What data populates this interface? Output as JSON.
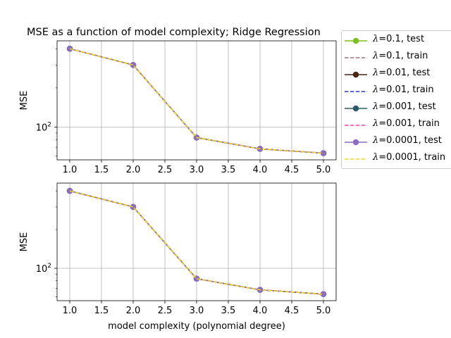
{
  "chart_data": [
    {
      "type": "line",
      "title": "MSE as a function of model complexity; Ridge Regression",
      "xlabel": "",
      "ylabel": "MSE",
      "yscale": "log",
      "grid": true,
      "xlim": [
        0.8,
        5.2
      ],
      "x_ticks": [
        "1.0",
        "1.5",
        "2.0",
        "2.5",
        "3.0",
        "3.5",
        "4.0",
        "4.5",
        "5.0"
      ],
      "y_ticks": [
        "10^2"
      ],
      "x": [
        1,
        2,
        3,
        4,
        5
      ],
      "series": [
        {
          "name": "λ=0.1, test",
          "style": "solid-marker",
          "color": "#7cbf1e",
          "values": [
            400,
            300,
            83,
            68,
            63
          ]
        },
        {
          "name": "λ=0.1, train",
          "style": "dashed",
          "color": "#a0727f",
          "values": [
            400,
            300,
            83,
            68,
            63
          ]
        },
        {
          "name": "λ=0.01, test",
          "style": "solid-marker",
          "color": "#4a2513",
          "values": [
            400,
            300,
            83,
            68,
            63
          ]
        },
        {
          "name": "λ=0.01, train",
          "style": "dashed",
          "color": "#2b3db8",
          "values": [
            400,
            300,
            83,
            68,
            63
          ]
        },
        {
          "name": "λ=0.001, test",
          "style": "solid-marker",
          "color": "#2a5a6a",
          "values": [
            400,
            300,
            83,
            68,
            63
          ]
        },
        {
          "name": "λ=0.001, train",
          "style": "dashed",
          "color": "#ee44b0",
          "values": [
            400,
            300,
            83,
            68,
            63
          ]
        },
        {
          "name": "λ=0.0001, test",
          "style": "solid-marker",
          "color": "#8c6cbc",
          "values": [
            400,
            300,
            83,
            68,
            63
          ]
        },
        {
          "name": "λ=0.0001, train",
          "style": "dashed",
          "color": "#f5d41c",
          "values": [
            400,
            300,
            83,
            68,
            63
          ]
        }
      ],
      "legend_location": "outside-right"
    },
    {
      "type": "line",
      "title": "",
      "xlabel": "model complexity (polynomial degree)",
      "ylabel": "MSE",
      "yscale": "log",
      "grid": true,
      "xlim": [
        0.8,
        5.2
      ],
      "x_ticks": [
        "1.0",
        "1.5",
        "2.0",
        "2.5",
        "3.0",
        "3.5",
        "4.0",
        "4.5",
        "5.0"
      ],
      "y_ticks": [
        "10^2"
      ],
      "x": [
        1,
        2,
        3,
        4,
        5
      ],
      "series": [
        {
          "name": "λ=0.1, test",
          "style": "solid-marker",
          "color": "#7cbf1e",
          "values": [
            400,
            300,
            83,
            68,
            63
          ]
        },
        {
          "name": "λ=0.1, train",
          "style": "dashed",
          "color": "#a0727f",
          "values": [
            400,
            300,
            83,
            68,
            63
          ]
        },
        {
          "name": "λ=0.01, test",
          "style": "solid-marker",
          "color": "#4a2513",
          "values": [
            400,
            300,
            83,
            68,
            63
          ]
        },
        {
          "name": "λ=0.01, train",
          "style": "dashed",
          "color": "#2b3db8",
          "values": [
            400,
            300,
            83,
            68,
            63
          ]
        },
        {
          "name": "λ=0.001, test",
          "style": "solid-marker",
          "color": "#2a5a6a",
          "values": [
            400,
            300,
            83,
            68,
            63
          ]
        },
        {
          "name": "λ=0.001, train",
          "style": "dashed",
          "color": "#ee44b0",
          "values": [
            400,
            300,
            83,
            68,
            63
          ]
        },
        {
          "name": "λ=0.0001, test",
          "style": "solid-marker",
          "color": "#8c6cbc",
          "values": [
            400,
            300,
            83,
            68,
            63
          ]
        },
        {
          "name": "λ=0.0001, train",
          "style": "dashed",
          "color": "#f5d41c",
          "values": [
            400,
            300,
            83,
            68,
            63
          ]
        }
      ]
    }
  ],
  "legend": {
    "items": [
      {
        "lambda": "λ",
        "label": "=0.1, test"
      },
      {
        "lambda": "λ",
        "label": "=0.1, train"
      },
      {
        "lambda": "λ",
        "label": "=0.01, test"
      },
      {
        "lambda": "λ",
        "label": "=0.01, train"
      },
      {
        "lambda": "λ",
        "label": "=0.001, test"
      },
      {
        "lambda": "λ",
        "label": "=0.001, train"
      },
      {
        "lambda": "λ",
        "label": "=0.0001, test"
      },
      {
        "lambda": "λ",
        "label": "=0.0001, train"
      }
    ]
  }
}
